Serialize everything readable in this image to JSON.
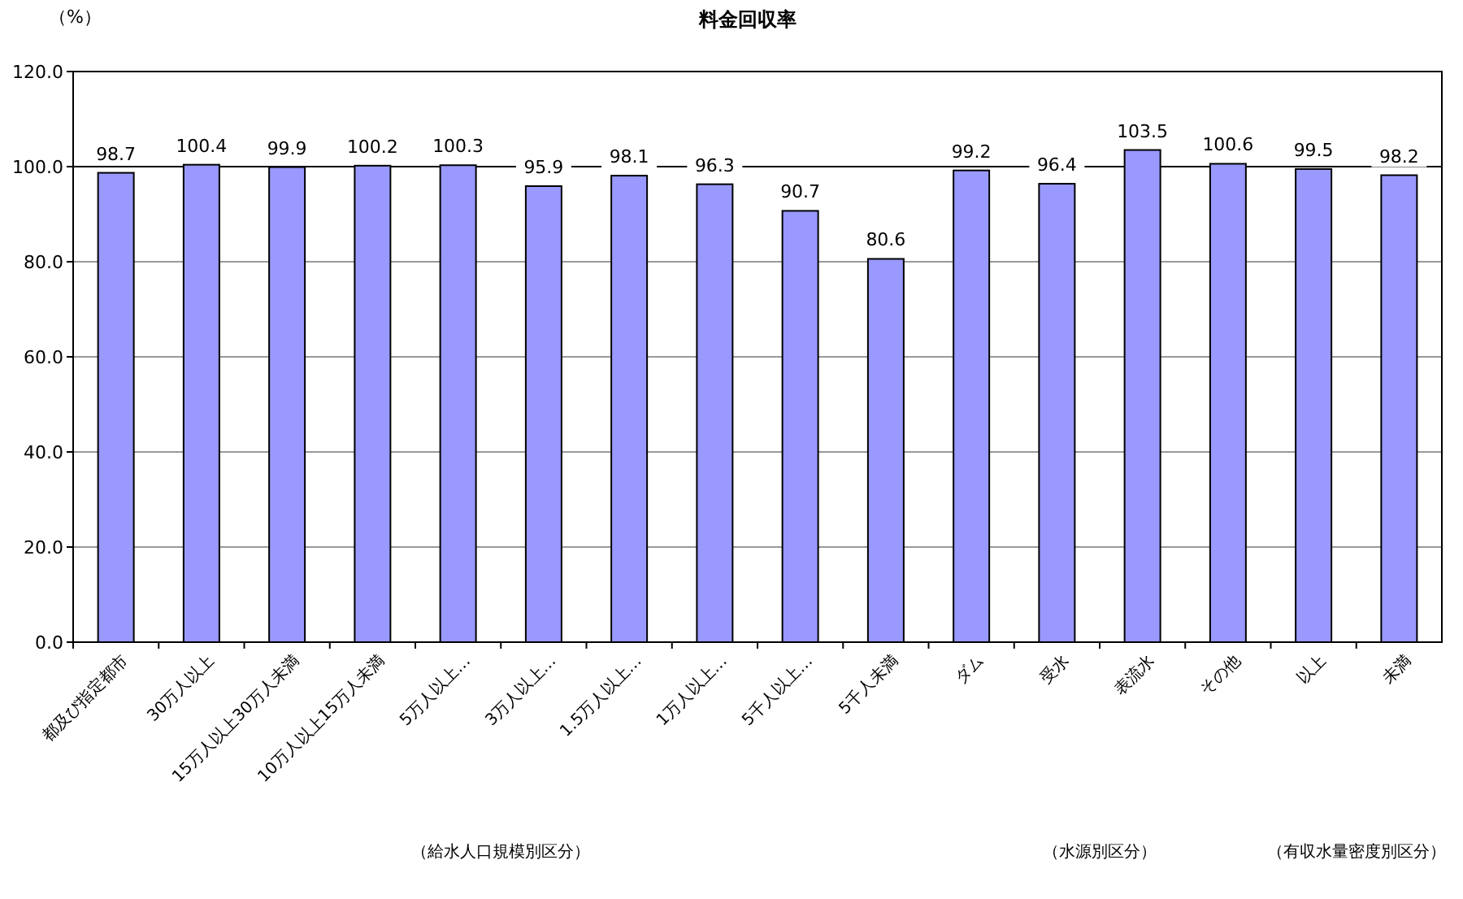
{
  "chart_data": {
    "type": "bar",
    "title": "料金回収率",
    "ylabel": "（%）",
    "categories": [
      "都及び指定都市",
      "30万人以上",
      "15万人以上30万人未満",
      "10万人以上15万人未満",
      "5万人以上…",
      "3万人以上…",
      "1.5万人以上…",
      "1万人以上…",
      "5千人以上…",
      "5千人未満",
      "ダム",
      "受水",
      "表流水",
      "その他",
      "以上",
      "未満"
    ],
    "values": [
      98.7,
      100.4,
      99.9,
      100.2,
      100.3,
      95.9,
      98.1,
      96.3,
      90.7,
      80.6,
      99.2,
      96.4,
      103.5,
      100.6,
      99.5,
      98.2
    ],
    "color": "#9999ff",
    "data_labels": true,
    "ylim": [
      0,
      120
    ],
    "yticks": [
      {
        "value": 0,
        "label": "0.0"
      },
      {
        "value": 20,
        "label": "20.0"
      },
      {
        "value": 40,
        "label": "40.0"
      },
      {
        "value": 60,
        "label": "60.0"
      },
      {
        "value": 80,
        "label": "80.0"
      },
      {
        "value": 100,
        "label": "100.0"
      },
      {
        "value": 120,
        "label": "120.0"
      }
    ],
    "grid": "y",
    "ref_lines": [
      {
        "axis": "y",
        "value": 100,
        "label": null,
        "color": "#000000"
      }
    ],
    "annotations": [
      "（給水人口規模別区分）",
      "（水源別区分）",
      "（有収水量密度別区分）"
    ]
  }
}
